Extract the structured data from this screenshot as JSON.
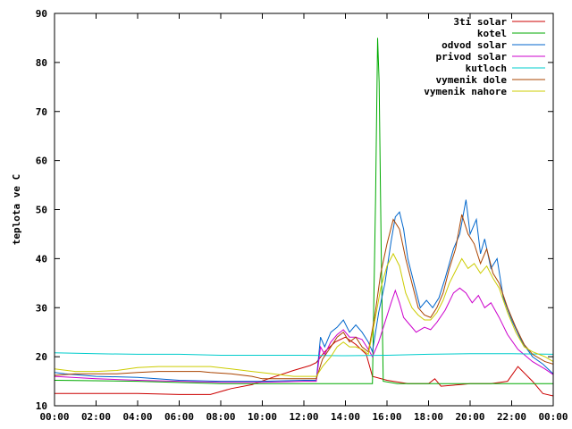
{
  "chart_data": {
    "type": "line",
    "title": "",
    "xlabel": "",
    "ylabel": "teplota ve C",
    "x_unit": "hours",
    "xlim": [
      0,
      24
    ],
    "ylim": [
      10,
      90
    ],
    "x_ticks": [
      {
        "value": 0,
        "label": "00:00"
      },
      {
        "value": 2,
        "label": "02:00"
      },
      {
        "value": 4,
        "label": "04:00"
      },
      {
        "value": 6,
        "label": "06:00"
      },
      {
        "value": 8,
        "label": "08:00"
      },
      {
        "value": 10,
        "label": "10:00"
      },
      {
        "value": 12,
        "label": "12:00"
      },
      {
        "value": 14,
        "label": "14:00"
      },
      {
        "value": 16,
        "label": "16:00"
      },
      {
        "value": 18,
        "label": "18:00"
      },
      {
        "value": 20,
        "label": "20:00"
      },
      {
        "value": 22,
        "label": "22:00"
      },
      {
        "value": 24,
        "label": "00:00"
      }
    ],
    "y_ticks": [
      {
        "value": 10,
        "label": "10"
      },
      {
        "value": 20,
        "label": "20"
      },
      {
        "value": 30,
        "label": "30"
      },
      {
        "value": 40,
        "label": "40"
      },
      {
        "value": 50,
        "label": "50"
      },
      {
        "value": 60,
        "label": "60"
      },
      {
        "value": 70,
        "label": "70"
      },
      {
        "value": 80,
        "label": "80"
      },
      {
        "value": 90,
        "label": "90"
      }
    ],
    "grid": false,
    "legend_position": "top-right",
    "series": [
      {
        "name": "3ti solar",
        "color": "#cc0000",
        "points": [
          [
            0,
            12.5
          ],
          [
            2,
            12.5
          ],
          [
            4,
            12.5
          ],
          [
            6,
            12.3
          ],
          [
            7.5,
            12.3
          ],
          [
            8.5,
            13.5
          ],
          [
            9.5,
            14.3
          ],
          [
            10.5,
            15.8
          ],
          [
            11.5,
            17.2
          ],
          [
            12.3,
            18.2
          ],
          [
            12.6,
            18.8
          ],
          [
            13,
            21
          ],
          [
            13.5,
            23
          ],
          [
            14,
            24
          ],
          [
            14.5,
            22.5
          ],
          [
            15,
            20.5
          ],
          [
            15.3,
            16
          ],
          [
            16,
            15.2
          ],
          [
            17,
            14.5
          ],
          [
            18,
            14.5
          ],
          [
            18.3,
            15.5
          ],
          [
            18.6,
            14
          ],
          [
            19.5,
            14.3
          ],
          [
            20,
            14.5
          ],
          [
            21,
            14.5
          ],
          [
            21.8,
            15
          ],
          [
            22.3,
            18
          ],
          [
            23,
            15
          ],
          [
            23.5,
            12.5
          ],
          [
            24,
            12
          ]
        ]
      },
      {
        "name": "kotel",
        "color": "#00aa00",
        "points": [
          [
            0,
            15.2
          ],
          [
            4,
            15
          ],
          [
            8,
            14.5
          ],
          [
            10,
            14.5
          ],
          [
            12,
            14.5
          ],
          [
            12.5,
            14.5
          ],
          [
            14,
            14.5
          ],
          [
            15,
            14.5
          ],
          [
            15.3,
            14.5
          ],
          [
            15.45,
            52
          ],
          [
            15.55,
            85
          ],
          [
            15.62,
            76
          ],
          [
            15.72,
            42
          ],
          [
            15.82,
            15
          ],
          [
            16.5,
            14.5
          ],
          [
            18,
            14.5
          ],
          [
            20,
            14.5
          ],
          [
            22,
            14.5
          ],
          [
            24,
            14.5
          ]
        ]
      },
      {
        "name": "odvod solar",
        "color": "#0066cc",
        "points": [
          [
            0,
            16.8
          ],
          [
            0.5,
            16.5
          ],
          [
            2,
            16
          ],
          [
            4,
            15.8
          ],
          [
            6,
            15.2
          ],
          [
            8,
            15
          ],
          [
            10,
            15
          ],
          [
            12,
            15.2
          ],
          [
            12.6,
            15.2
          ],
          [
            12.8,
            24
          ],
          [
            13,
            22
          ],
          [
            13.3,
            25
          ],
          [
            13.6,
            26
          ],
          [
            13.9,
            27.5
          ],
          [
            14.2,
            25
          ],
          [
            14.5,
            26.5
          ],
          [
            14.8,
            25
          ],
          [
            15.1,
            23
          ],
          [
            15.3,
            21
          ],
          [
            15.6,
            29
          ],
          [
            15.9,
            35
          ],
          [
            16.2,
            43.5
          ],
          [
            16.4,
            48.5
          ],
          [
            16.6,
            49.5
          ],
          [
            16.8,
            46
          ],
          [
            17,
            40
          ],
          [
            17.3,
            35
          ],
          [
            17.6,
            30
          ],
          [
            17.9,
            31.5
          ],
          [
            18.2,
            30
          ],
          [
            18.5,
            32
          ],
          [
            18.8,
            36
          ],
          [
            19.2,
            42
          ],
          [
            19.5,
            45
          ],
          [
            19.8,
            52
          ],
          [
            20,
            45
          ],
          [
            20.3,
            48
          ],
          [
            20.5,
            41
          ],
          [
            20.7,
            44
          ],
          [
            21,
            38
          ],
          [
            21.3,
            40
          ],
          [
            21.6,
            32
          ],
          [
            22,
            27.5
          ],
          [
            22.5,
            23
          ],
          [
            23,
            20
          ],
          [
            23.5,
            18.5
          ],
          [
            24,
            16.5
          ],
          [
            24.2,
            16
          ]
        ]
      },
      {
        "name": "privod solar",
        "color": "#cc00cc",
        "points": [
          [
            0,
            16
          ],
          [
            2,
            15.5
          ],
          [
            4,
            15.2
          ],
          [
            6,
            15
          ],
          [
            8,
            14.8
          ],
          [
            10,
            14.8
          ],
          [
            12,
            15
          ],
          [
            12.6,
            15
          ],
          [
            12.8,
            22
          ],
          [
            13,
            20.5
          ],
          [
            13.3,
            23
          ],
          [
            13.6,
            24.5
          ],
          [
            13.9,
            25.5
          ],
          [
            14.2,
            24
          ],
          [
            14.5,
            24
          ],
          [
            14.8,
            23.5
          ],
          [
            15.1,
            21.5
          ],
          [
            15.3,
            20
          ],
          [
            15.6,
            23
          ],
          [
            15.9,
            27
          ],
          [
            16.2,
            31
          ],
          [
            16.4,
            33.5
          ],
          [
            16.6,
            31
          ],
          [
            16.8,
            28
          ],
          [
            17.1,
            26.5
          ],
          [
            17.4,
            25
          ],
          [
            17.8,
            26
          ],
          [
            18.1,
            25.5
          ],
          [
            18.4,
            27
          ],
          [
            18.8,
            29.5
          ],
          [
            19.2,
            33
          ],
          [
            19.5,
            34
          ],
          [
            19.8,
            33
          ],
          [
            20.1,
            31
          ],
          [
            20.4,
            32.5
          ],
          [
            20.7,
            30
          ],
          [
            21,
            31
          ],
          [
            21.4,
            28
          ],
          [
            21.8,
            24.5
          ],
          [
            22.3,
            21.5
          ],
          [
            23,
            19
          ],
          [
            23.6,
            17.5
          ],
          [
            24.2,
            15.8
          ]
        ]
      },
      {
        "name": "kutloch",
        "color": "#00cccc",
        "points": [
          [
            0,
            20.8
          ],
          [
            2,
            20.6
          ],
          [
            4,
            20.5
          ],
          [
            6,
            20.5
          ],
          [
            8,
            20.3
          ],
          [
            10,
            20.3
          ],
          [
            12,
            20.3
          ],
          [
            14,
            20.2
          ],
          [
            16,
            20.3
          ],
          [
            18,
            20.5
          ],
          [
            20,
            20.6
          ],
          [
            22,
            20.6
          ],
          [
            24.2,
            20.5
          ]
        ]
      },
      {
        "name": "vymenik dole",
        "color": "#aa4400",
        "points": [
          [
            0,
            16.2
          ],
          [
            1,
            16.5
          ],
          [
            3,
            16.5
          ],
          [
            4,
            16.8
          ],
          [
            5,
            17
          ],
          [
            6,
            17
          ],
          [
            7,
            17
          ],
          [
            7.5,
            16.8
          ],
          [
            8.5,
            16.5
          ],
          [
            9.5,
            16
          ],
          [
            10,
            15.5
          ],
          [
            11,
            15.5
          ],
          [
            12,
            15.5
          ],
          [
            12.6,
            15.5
          ],
          [
            12.9,
            19.5
          ],
          [
            13.3,
            22
          ],
          [
            13.6,
            24
          ],
          [
            13.9,
            25
          ],
          [
            14.2,
            23
          ],
          [
            14.5,
            24
          ],
          [
            14.8,
            22
          ],
          [
            15.1,
            21
          ],
          [
            15.4,
            28
          ],
          [
            15.7,
            37
          ],
          [
            16,
            43
          ],
          [
            16.3,
            48
          ],
          [
            16.6,
            46
          ],
          [
            16.9,
            40
          ],
          [
            17.2,
            35
          ],
          [
            17.5,
            30
          ],
          [
            17.8,
            28.5
          ],
          [
            18.1,
            28
          ],
          [
            18.4,
            30
          ],
          [
            18.7,
            33
          ],
          [
            19,
            38
          ],
          [
            19.3,
            42
          ],
          [
            19.6,
            49
          ],
          [
            19.9,
            45
          ],
          [
            20.2,
            43
          ],
          [
            20.5,
            39
          ],
          [
            20.8,
            42
          ],
          [
            21.1,
            37
          ],
          [
            21.4,
            35
          ],
          [
            21.8,
            30
          ],
          [
            22.2,
            26
          ],
          [
            22.6,
            22.5
          ],
          [
            23,
            20.5
          ],
          [
            23.6,
            19
          ],
          [
            24,
            18.5
          ],
          [
            24.3,
            17.5
          ]
        ]
      },
      {
        "name": "vymenik nahore",
        "color": "#cccc00",
        "points": [
          [
            0,
            17.5
          ],
          [
            1,
            17
          ],
          [
            2,
            17
          ],
          [
            3,
            17.2
          ],
          [
            4,
            17.8
          ],
          [
            5,
            18
          ],
          [
            6,
            18
          ],
          [
            7,
            18
          ],
          [
            7.5,
            18
          ],
          [
            8.5,
            17.5
          ],
          [
            9.5,
            17
          ],
          [
            10.5,
            16.5
          ],
          [
            11.5,
            16
          ],
          [
            12.6,
            16
          ],
          [
            12.9,
            18
          ],
          [
            13.3,
            20
          ],
          [
            13.6,
            22
          ],
          [
            13.9,
            23
          ],
          [
            14.2,
            22
          ],
          [
            14.5,
            22
          ],
          [
            14.8,
            21.5
          ],
          [
            15.1,
            20.5
          ],
          [
            15.4,
            27
          ],
          [
            15.7,
            34
          ],
          [
            16,
            38.5
          ],
          [
            16.3,
            41
          ],
          [
            16.6,
            38.5
          ],
          [
            16.9,
            33
          ],
          [
            17.2,
            30
          ],
          [
            17.5,
            28.5
          ],
          [
            17.8,
            27.5
          ],
          [
            18.1,
            27.5
          ],
          [
            18.4,
            29
          ],
          [
            18.7,
            31.5
          ],
          [
            19,
            35
          ],
          [
            19.3,
            37.5
          ],
          [
            19.6,
            40
          ],
          [
            19.9,
            38
          ],
          [
            20.2,
            39
          ],
          [
            20.5,
            37
          ],
          [
            20.8,
            38.5
          ],
          [
            21.1,
            36
          ],
          [
            21.4,
            34
          ],
          [
            21.8,
            29
          ],
          [
            22.2,
            25
          ],
          [
            22.6,
            22
          ],
          [
            23,
            21
          ],
          [
            23.6,
            20
          ],
          [
            24,
            19
          ],
          [
            24.4,
            18
          ]
        ]
      }
    ]
  }
}
